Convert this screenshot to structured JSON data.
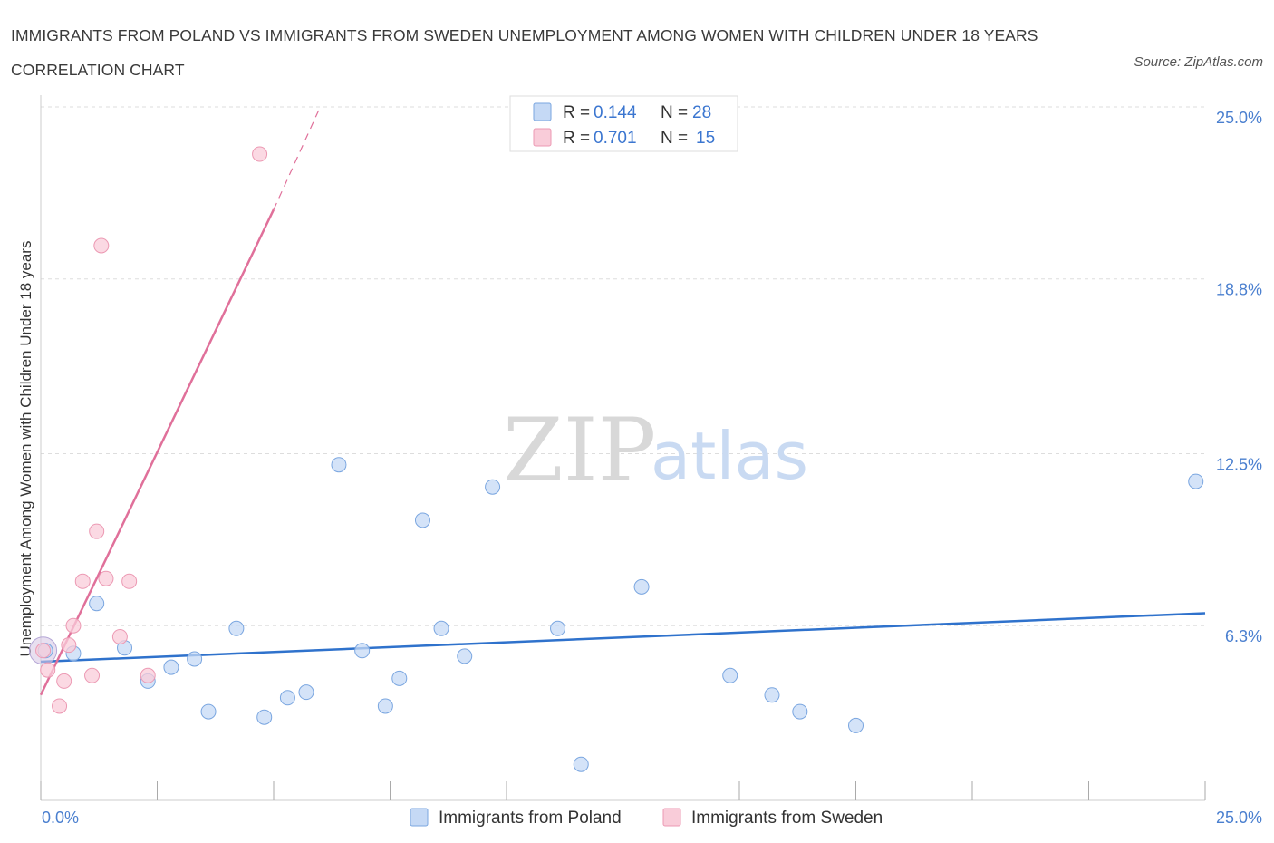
{
  "title": "IMMIGRANTS FROM POLAND VS IMMIGRANTS FROM SWEDEN UNEMPLOYMENT AMONG WOMEN WITH CHILDREN UNDER 18 YEARS CORRELATION CHART",
  "source": "Source: ZipAtlas.com",
  "watermark": {
    "zip": "ZIP",
    "atlas": "atlas"
  },
  "legend": {
    "poland": {
      "r_label": "R = ",
      "r_value": "0.144",
      "n_label": "N = ",
      "n_value": "28"
    },
    "sweden": {
      "r_label": "R = ",
      "r_value": "0.701",
      "n_label": "N = ",
      "n_value": "15"
    }
  },
  "colors": {
    "poland_fill": "#c5d9f5",
    "poland_stroke": "#7aa6e0",
    "poland_line": "#2f72cc",
    "sweden_fill": "#f9ccd9",
    "sweden_stroke": "#ec99b3",
    "sweden_line": "#e0709a",
    "tick_text": "#4a7fcf",
    "grid": "#dddddd"
  },
  "chart_data": {
    "type": "scatter",
    "xlabel": "",
    "ylabel": "Unemployment Among Women with Children Under 18 years",
    "xlim": [
      0,
      25
    ],
    "ylim": [
      0,
      25
    ],
    "x_tick_labels": [
      "0.0%",
      "25.0%"
    ],
    "y_ticks": [
      6.3,
      12.5,
      18.8,
      25.0
    ],
    "y_tick_labels": [
      "6.3%",
      "12.5%",
      "18.8%",
      "25.0%"
    ],
    "grid": true,
    "series": [
      {
        "name": "Immigrants from Poland",
        "points": [
          [
            0.1,
            5.4
          ],
          [
            0.7,
            5.3
          ],
          [
            1.2,
            7.1
          ],
          [
            1.8,
            5.5
          ],
          [
            2.3,
            4.3
          ],
          [
            2.8,
            4.8
          ],
          [
            3.3,
            5.1
          ],
          [
            3.6,
            3.2
          ],
          [
            4.2,
            6.2
          ],
          [
            4.8,
            3.0
          ],
          [
            5.3,
            3.7
          ],
          [
            5.7,
            3.9
          ],
          [
            6.4,
            12.1
          ],
          [
            6.9,
            5.4
          ],
          [
            7.4,
            3.4
          ],
          [
            7.7,
            4.4
          ],
          [
            8.2,
            10.1
          ],
          [
            8.6,
            6.2
          ],
          [
            9.1,
            5.2
          ],
          [
            9.7,
            11.3
          ],
          [
            11.1,
            6.2
          ],
          [
            11.6,
            1.3
          ],
          [
            12.9,
            7.7
          ],
          [
            14.8,
            4.5
          ],
          [
            15.7,
            3.8
          ],
          [
            16.3,
            3.2
          ],
          [
            17.5,
            2.7
          ],
          [
            24.8,
            11.5
          ]
        ],
        "trend": [
          [
            0.0,
            5.0
          ],
          [
            25.0,
            6.75
          ]
        ]
      },
      {
        "name": "Immigrants from Sweden",
        "points": [
          [
            0.05,
            5.4
          ],
          [
            0.15,
            4.7
          ],
          [
            0.4,
            3.4
          ],
          [
            0.5,
            4.3
          ],
          [
            0.6,
            5.6
          ],
          [
            0.7,
            6.3
          ],
          [
            0.9,
            7.9
          ],
          [
            1.1,
            4.5
          ],
          [
            1.2,
            9.7
          ],
          [
            1.4,
            8.0
          ],
          [
            1.7,
            5.9
          ],
          [
            1.9,
            7.9
          ],
          [
            2.3,
            4.5
          ],
          [
            1.3,
            20.0
          ],
          [
            4.7,
            23.3
          ]
        ],
        "trend": [
          [
            0.0,
            3.8
          ],
          [
            5.0,
            21.3
          ]
        ],
        "trend_dashed": [
          [
            5.0,
            21.3
          ],
          [
            6.0,
            25.0
          ]
        ]
      }
    ]
  }
}
